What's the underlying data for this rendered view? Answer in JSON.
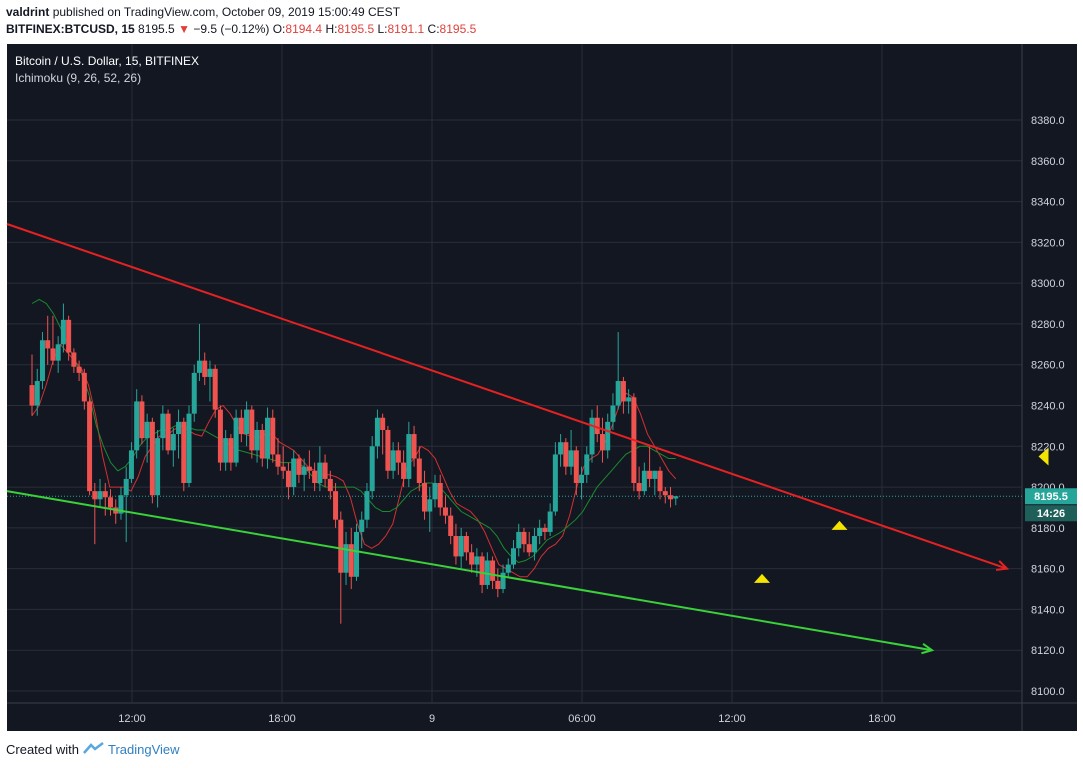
{
  "header": {
    "author": "valdrint",
    "published_text": "published on TradingView.com, October 09, 2019 15:00:49 CEST",
    "symbol": "BITFINEX:BTCUSD, 15",
    "last_price": "8195.5",
    "change_arrow": "▼",
    "change": "−9.5 (−0.12%)",
    "o_label": "O:",
    "o_value": "8194.4",
    "h_label": "H:",
    "h_value": "8195.5",
    "l_label": "L:",
    "l_value": "8191.1",
    "c_label": "C:",
    "c_value": "8195.5"
  },
  "legend": {
    "title": "Bitcoin / U.S. Dollar, 15, BITFINEX",
    "indicator": "Ichimoku (9, 26, 52, 26)"
  },
  "price_badge": {
    "price": "8195.5",
    "countdown": "14:26"
  },
  "footer": {
    "created_with": "Created with",
    "brand": "TradingView"
  },
  "colors": {
    "background": "#131722",
    "grid": "#2a2e39",
    "up": "#26a69a",
    "down": "#ef5350",
    "resistance": "#e52222",
    "support": "#3ad13a",
    "marker": "#f5e400",
    "badge": "#26a69a",
    "tenkan": "#d33030",
    "kijun": "#1b8a2e"
  },
  "chart_data": {
    "type": "candlestick",
    "symbol": "BITFINEX:BTCUSD",
    "interval": "15",
    "ylim": [
      8090,
      8390
    ],
    "y_ticks": [
      8100,
      8120,
      8140,
      8160,
      8180,
      8200,
      8220,
      8240,
      8260,
      8280,
      8300,
      8320,
      8340,
      8360,
      8380
    ],
    "x_ticks": [
      {
        "label": "12:00",
        "hour": 12
      },
      {
        "label": "18:00",
        "hour": 18
      },
      {
        "label": "9",
        "hour": 24
      },
      {
        "label": "06:00",
        "hour": 30
      },
      {
        "label": "12:00",
        "hour": 36
      },
      {
        "label": "18:00",
        "hour": 42
      }
    ],
    "x_unit": "hours from Oct 08 00:00",
    "xlim": [
      7.0,
      47.6
    ],
    "candles": [
      [
        8250,
        8265,
        8235,
        8240
      ],
      [
        8240,
        8258,
        8235,
        8252
      ],
      [
        8252,
        8276,
        8248,
        8272
      ],
      [
        8272,
        8284,
        8260,
        8268
      ],
      [
        8268,
        8284,
        8260,
        8262
      ],
      [
        8262,
        8274,
        8256,
        8270
      ],
      [
        8270,
        8290,
        8266,
        8282
      ],
      [
        8282,
        8284,
        8262,
        8266
      ],
      [
        8266,
        8268,
        8256,
        8259
      ],
      [
        8259,
        8262,
        8252,
        8256
      ],
      [
        8256,
        8258,
        8238,
        8242
      ],
      [
        8242,
        8244,
        8196,
        8198
      ],
      [
        8198,
        8202,
        8172,
        8194
      ],
      [
        8194,
        8204,
        8190,
        8198
      ],
      [
        8198,
        8202,
        8186,
        8195
      ],
      [
        8195,
        8199,
        8186,
        8190
      ],
      [
        8190,
        8194,
        8182,
        8187
      ],
      [
        8187,
        8200,
        8184,
        8196
      ],
      [
        8196,
        8210,
        8173,
        8204
      ],
      [
        8204,
        8222,
        8202,
        8218
      ],
      [
        8218,
        8248,
        8214,
        8242
      ],
      [
        8242,
        8245,
        8221,
        8224
      ],
      [
        8224,
        8236,
        8212,
        8232
      ],
      [
        8232,
        8234,
        8192,
        8196
      ],
      [
        8196,
        8228,
        8190,
        8224
      ],
      [
        8224,
        8240,
        8218,
        8236
      ],
      [
        8236,
        8238,
        8216,
        8218
      ],
      [
        8218,
        8229,
        8210,
        8226
      ],
      [
        8226,
        8238,
        8214,
        8232
      ],
      [
        8232,
        8234,
        8198,
        8202
      ],
      [
        8202,
        8240,
        8200,
        8236
      ],
      [
        8236,
        8260,
        8232,
        8256
      ],
      [
        8256,
        8280,
        8252,
        8262
      ],
      [
        8262,
        8266,
        8250,
        8254
      ],
      [
        8254,
        8262,
        8242,
        8258
      ],
      [
        8258,
        8260,
        8234,
        8238
      ],
      [
        8238,
        8240,
        8208,
        8212
      ],
      [
        8212,
        8228,
        8208,
        8224
      ],
      [
        8224,
        8226,
        8208,
        8212
      ],
      [
        8212,
        8238,
        8210,
        8234
      ],
      [
        8234,
        8238,
        8222,
        8226
      ],
      [
        8226,
        8242,
        8220,
        8238
      ],
      [
        8238,
        8240,
        8214,
        8218
      ],
      [
        8218,
        8232,
        8212,
        8228
      ],
      [
        8228,
        8231,
        8210,
        8214
      ],
      [
        8214,
        8239,
        8209,
        8234
      ],
      [
        8234,
        8238,
        8212,
        8216
      ],
      [
        8216,
        8224,
        8206,
        8210
      ],
      [
        8210,
        8220,
        8204,
        8208
      ],
      [
        8208,
        8212,
        8194,
        8200
      ],
      [
        8200,
        8218,
        8196,
        8214
      ],
      [
        8214,
        8216,
        8202,
        8206
      ],
      [
        8206,
        8214,
        8198,
        8210
      ],
      [
        8210,
        8218,
        8204,
        8208
      ],
      [
        8208,
        8212,
        8198,
        8202
      ],
      [
        8202,
        8220,
        8198,
        8212
      ],
      [
        8212,
        8216,
        8200,
        8204
      ],
      [
        8204,
        8208,
        8194,
        8198
      ],
      [
        8198,
        8202,
        8180,
        8184
      ],
      [
        8184,
        8188,
        8133,
        8158
      ],
      [
        8158,
        8178,
        8152,
        8172
      ],
      [
        8172,
        8180,
        8150,
        8156
      ],
      [
        8156,
        8182,
        8154,
        8178
      ],
      [
        8178,
        8188,
        8170,
        8184
      ],
      [
        8184,
        8202,
        8180,
        8198
      ],
      [
        8198,
        8225,
        8194,
        8220
      ],
      [
        8220,
        8238,
        8214,
        8234
      ],
      [
        8234,
        8236,
        8216,
        8228
      ],
      [
        8228,
        8230,
        8204,
        8208
      ],
      [
        8208,
        8222,
        8204,
        8218
      ],
      [
        8218,
        8222,
        8206,
        8212
      ],
      [
        8212,
        8218,
        8200,
        8204
      ],
      [
        8204,
        8232,
        8200,
        8226
      ],
      [
        8226,
        8230,
        8210,
        8214
      ],
      [
        8214,
        8220,
        8198,
        8202
      ],
      [
        8202,
        8208,
        8184,
        8188
      ],
      [
        8188,
        8200,
        8178,
        8194
      ],
      [
        8194,
        8206,
        8190,
        8202
      ],
      [
        8202,
        8206,
        8186,
        8190
      ],
      [
        8190,
        8196,
        8182,
        8186
      ],
      [
        8186,
        8190,
        8172,
        8176
      ],
      [
        8176,
        8182,
        8162,
        8166
      ],
      [
        8166,
        8180,
        8160,
        8176
      ],
      [
        8176,
        8178,
        8164,
        8168
      ],
      [
        8168,
        8172,
        8158,
        8162
      ],
      [
        8162,
        8170,
        8156,
        8166
      ],
      [
        8166,
        8168,
        8148,
        8152
      ],
      [
        8152,
        8168,
        8150,
        8164
      ],
      [
        8164,
        8166,
        8150,
        8154
      ],
      [
        8154,
        8160,
        8146,
        8150
      ],
      [
        8150,
        8162,
        8148,
        8158
      ],
      [
        8158,
        8165,
        8156,
        8162
      ],
      [
        8162,
        8174,
        8160,
        8170
      ],
      [
        8170,
        8182,
        8166,
        8178
      ],
      [
        8178,
        8180,
        8168,
        8172
      ],
      [
        8172,
        8178,
        8166,
        8168
      ],
      [
        8168,
        8180,
        8164,
        8176
      ],
      [
        8176,
        8184,
        8172,
        8180
      ],
      [
        8180,
        8182,
        8174,
        8178
      ],
      [
        8178,
        8192,
        8176,
        8188
      ],
      [
        8188,
        8222,
        8186,
        8216
      ],
      [
        8216,
        8226,
        8210,
        8222
      ],
      [
        8222,
        8224,
        8206,
        8210
      ],
      [
        8210,
        8228,
        8206,
        8218
      ],
      [
        8218,
        8220,
        8196,
        8202
      ],
      [
        8202,
        8210,
        8194,
        8206
      ],
      [
        8206,
        8220,
        8202,
        8216
      ],
      [
        8216,
        8238,
        8212,
        8234
      ],
      [
        8234,
        8240,
        8222,
        8226
      ],
      [
        8226,
        8234,
        8212,
        8218
      ],
      [
        8218,
        8236,
        8214,
        8232
      ],
      [
        8232,
        8246,
        8228,
        8240
      ],
      [
        8240,
        8276,
        8238,
        8252
      ],
      [
        8252,
        8254,
        8236,
        8242
      ],
      [
        8242,
        8248,
        8236,
        8244
      ],
      [
        8244,
        8246,
        8198,
        8202
      ],
      [
        8202,
        8210,
        8194,
        8198
      ],
      [
        8198,
        8212,
        8196,
        8208
      ],
      [
        8208,
        8220,
        8200,
        8204
      ],
      [
        8204,
        8208,
        8196,
        8208
      ],
      [
        8208,
        8210,
        8194,
        8198
      ],
      [
        8198,
        8200,
        8192,
        8196
      ],
      [
        8196,
        8200,
        8190,
        8194
      ],
      [
        8194.4,
        8195.5,
        8191.1,
        8195.5
      ]
    ],
    "tenkan": [
      8235,
      8240,
      8250,
      8262,
      8270,
      8266,
      8262,
      8258,
      8250,
      8235,
      8215,
      8200,
      8200,
      8200,
      8198,
      8205,
      8215,
      8220,
      8225,
      8225,
      8228,
      8230,
      8228,
      8226,
      8225,
      8232,
      8238,
      8240,
      8236,
      8230,
      8226,
      8225,
      8224,
      8226,
      8226,
      8222,
      8220,
      8218,
      8214,
      8210,
      8208,
      8206,
      8206,
      8205,
      8203,
      8195,
      8182,
      8172,
      8170,
      8172,
      8176,
      8182,
      8196,
      8210,
      8214,
      8220,
      8218,
      8214,
      8206,
      8198,
      8192,
      8190,
      8188,
      8184,
      8178,
      8170,
      8162,
      8160,
      8158,
      8156,
      8156,
      8160,
      8166,
      8170,
      8172,
      8176,
      8186,
      8200,
      8210,
      8214,
      8216,
      8222,
      8230,
      8240,
      8246,
      8244,
      8236,
      8226,
      8220,
      8214,
      8208,
      8204
    ],
    "kijun": [
      8290,
      8292,
      8290,
      8285,
      8278,
      8270,
      8262,
      8255,
      8245,
      8230,
      8220,
      8212,
      8208,
      8210,
      8214,
      8220,
      8224,
      8226,
      8228,
      8228,
      8230,
      8230,
      8229,
      8228,
      8228,
      8226,
      8224,
      8222,
      8220,
      8218,
      8217,
      8216,
      8215,
      8214,
      8213,
      8212,
      8212,
      8212,
      8210,
      8206,
      8202,
      8200,
      8200,
      8200,
      8200,
      8200,
      8198,
      8194,
      8190,
      8188,
      8188,
      8190,
      8194,
      8198,
      8200,
      8202,
      8202,
      8200,
      8196,
      8192,
      8188,
      8186,
      8184,
      8182,
      8180,
      8176,
      8170,
      8166,
      8163,
      8164,
      8166,
      8170,
      8174,
      8176,
      8178,
      8181,
      8184,
      8188,
      8194,
      8200,
      8204,
      8208,
      8212,
      8216,
      8218,
      8220,
      8220,
      8218,
      8216,
      8214,
      8214
    ],
    "trendlines": [
      {
        "name": "resistance",
        "color": "red",
        "from": [
          7.0,
          8329
        ],
        "to": [
          47.0,
          8160
        ],
        "arrow": true
      },
      {
        "name": "support",
        "color": "green",
        "from": [
          7.0,
          8198
        ],
        "to": [
          44.0,
          8120
        ],
        "arrow": true
      }
    ],
    "markers": [
      {
        "shape": "up",
        "x": 37.2,
        "y": 8155
      },
      {
        "shape": "up",
        "x": 40.3,
        "y": 8181
      },
      {
        "shape": "left",
        "x": 48.5,
        "y": 8215
      }
    ],
    "last_price": 8195.5
  }
}
